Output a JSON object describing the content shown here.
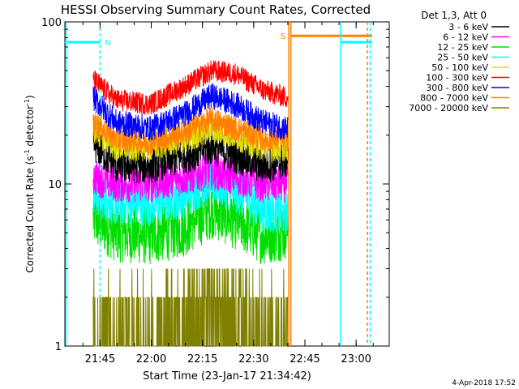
{
  "chart_data": {
    "type": "line",
    "title": "HESSI Observing Summary Count Rates, Corrected",
    "xlabel": "Start Time (23-Jan-17 21:34:42)",
    "ylabel": "Corrected Count Rate (s⁻¹ detector⁻¹)",
    "ylabel_parts": {
      "main": "Corrected Count Rate (s",
      "sup1": "-1",
      "mid": " detector",
      "sup2": "-1",
      "end": ")"
    },
    "yscale": "log",
    "ylim": [
      1,
      100
    ],
    "xlim_minutes": [
      0,
      95
    ],
    "x_ticks": [
      {
        "label": "21:45",
        "min": 10.3
      },
      {
        "label": "22:00",
        "min": 25.3
      },
      {
        "label": "22:15",
        "min": 40.3
      },
      {
        "label": "22:30",
        "min": 55.3
      },
      {
        "label": "22:45",
        "min": 70.3
      },
      {
        "label": "23:00",
        "min": 85.3
      }
    ],
    "y_ticks": [
      {
        "label": "1",
        "value": 1
      },
      {
        "label": "10",
        "value": 10
      },
      {
        "label": "100",
        "value": 100
      }
    ],
    "legend": {
      "title": "Det 1,3, Att 0",
      "position": "right"
    },
    "data_window_minutes": [
      8.3,
      65.3
    ],
    "series": [
      {
        "name": "3 - 6 keV",
        "color": "#000000",
        "values": [
          [
            8.3,
            18
          ],
          [
            15,
            13
          ],
          [
            25,
            13
          ],
          [
            35,
            15
          ],
          [
            43,
            17
          ],
          [
            50,
            15
          ],
          [
            58,
            13
          ],
          [
            65.3,
            14
          ]
        ],
        "noise": 0.1
      },
      {
        "name": "6 - 12 keV",
        "color": "#ff00ff",
        "values": [
          [
            8.3,
            11
          ],
          [
            15,
            10
          ],
          [
            25,
            10
          ],
          [
            35,
            11
          ],
          [
            43,
            12
          ],
          [
            50,
            11
          ],
          [
            58,
            10
          ],
          [
            65.3,
            10
          ]
        ],
        "noise": 0.1
      },
      {
        "name": "12 - 25 keV",
        "color": "#00dd00",
        "values": [
          [
            8.3,
            6.2
          ],
          [
            15,
            5.0
          ],
          [
            25,
            4.8
          ],
          [
            35,
            5.4
          ],
          [
            43,
            7.0
          ],
          [
            50,
            6.0
          ],
          [
            58,
            4.8
          ],
          [
            65.3,
            5.2
          ]
        ],
        "noise": 0.16
      },
      {
        "name": "25 - 50 keV",
        "color": "#00ffff",
        "values": [
          [
            8.3,
            9.0
          ],
          [
            15,
            7.5
          ],
          [
            25,
            7.5
          ],
          [
            35,
            8.5
          ],
          [
            43,
            10.5
          ],
          [
            50,
            9.0
          ],
          [
            58,
            7.0
          ],
          [
            65.3,
            6.5
          ]
        ],
        "noise": 0.12
      },
      {
        "name": "50 - 100 keV",
        "color": "#dddd00",
        "values": [
          [
            8.3,
            22
          ],
          [
            15,
            17
          ],
          [
            25,
            17
          ],
          [
            35,
            19
          ],
          [
            43,
            22
          ],
          [
            50,
            20
          ],
          [
            58,
            17
          ],
          [
            65.3,
            17
          ]
        ],
        "noise": 0.08
      },
      {
        "name": "100 - 300 keV",
        "color": "#ff0000",
        "values": [
          [
            8.3,
            44
          ],
          [
            15,
            33
          ],
          [
            25,
            31
          ],
          [
            35,
            40
          ],
          [
            43,
            50
          ],
          [
            50,
            48
          ],
          [
            58,
            38
          ],
          [
            65.3,
            34
          ]
        ],
        "noise": 0.06
      },
      {
        "name": "300 - 800 keV",
        "color": "#0000ff",
        "values": [
          [
            8.3,
            34
          ],
          [
            15,
            24
          ],
          [
            25,
            22
          ],
          [
            35,
            27
          ],
          [
            43,
            35
          ],
          [
            50,
            31
          ],
          [
            58,
            24
          ],
          [
            65.3,
            22
          ]
        ],
        "noise": 0.07
      },
      {
        "name": "800 - 7000 keV",
        "color": "#ff8000",
        "values": [
          [
            8.3,
            24
          ],
          [
            15,
            19
          ],
          [
            25,
            18
          ],
          [
            35,
            21
          ],
          [
            43,
            25
          ],
          [
            50,
            22
          ],
          [
            58,
            19
          ],
          [
            65.3,
            19
          ]
        ],
        "noise": 0.07
      },
      {
        "name": "7000 - 20000 keV",
        "color": "#808000",
        "values": [
          [
            8.3,
            1.5
          ],
          [
            20,
            1.3
          ],
          [
            30,
            1.4
          ],
          [
            38,
            1.8
          ],
          [
            43,
            2.3
          ],
          [
            50,
            1.8
          ],
          [
            58,
            1.4
          ],
          [
            65.3,
            1.3
          ]
        ],
        "noise": 0.35
      }
    ],
    "flags": [
      {
        "label": "N",
        "color": "#00ffff",
        "level": 75,
        "start": 0,
        "end": 10.3
      },
      {
        "label": "S",
        "color": "#ff8000",
        "level": 82,
        "start": 66,
        "end": 90
      }
    ],
    "flag_extra_segments": [
      {
        "color": "#00ffff",
        "level": 75,
        "start": 80.8,
        "end": 90
      }
    ]
  },
  "footer": {
    "timestamp": "4-Apr-2018 17:52"
  }
}
